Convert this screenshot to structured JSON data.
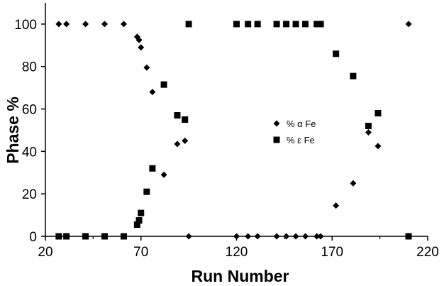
{
  "chart_data": {
    "type": "scatter",
    "title": "",
    "xlabel": "Run Number",
    "ylabel": "Phase %",
    "xlim": [
      20,
      220
    ],
    "ylim": [
      0,
      110
    ],
    "xticks": [
      20,
      70,
      120,
      170,
      220
    ],
    "yticks": [
      0,
      20,
      40,
      60,
      80,
      100
    ],
    "x_tick_labels": [
      "20",
      "70",
      "120",
      "170",
      "220"
    ],
    "y_tick_labels": [
      "0",
      "20",
      "40",
      "60",
      "80",
      "100"
    ],
    "grid": false,
    "legend_position": "center-right",
    "series": [
      {
        "name": "% α Fe",
        "legend_label": "% α Fe",
        "marker": "diamond",
        "color": "#000000",
        "points": [
          [
            27,
            100
          ],
          [
            31,
            100
          ],
          [
            41,
            100
          ],
          [
            51,
            100
          ],
          [
            61,
            100
          ],
          [
            68,
            94
          ],
          [
            69,
            92.5
          ],
          [
            70,
            89
          ],
          [
            73,
            79.5
          ],
          [
            76,
            68
          ],
          [
            82,
            29
          ],
          [
            89,
            43.5
          ],
          [
            93,
            45
          ],
          [
            95,
            0
          ],
          [
            120,
            0
          ],
          [
            126,
            0
          ],
          [
            131,
            0
          ],
          [
            141,
            0
          ],
          [
            146,
            0
          ],
          [
            151,
            0
          ],
          [
            156,
            0
          ],
          [
            162,
            0
          ],
          [
            164,
            0
          ],
          [
            172,
            14.5
          ],
          [
            181,
            25
          ],
          [
            189,
            49
          ],
          [
            194,
            42.5
          ],
          [
            210,
            100
          ]
        ]
      },
      {
        "name": "% ε Fe",
        "legend_label": "% ε Fe",
        "marker": "square",
        "color": "#000000",
        "points": [
          [
            27,
            0
          ],
          [
            31,
            0
          ],
          [
            41,
            0
          ],
          [
            51,
            0
          ],
          [
            61,
            0
          ],
          [
            68,
            5.5
          ],
          [
            69,
            7.5
          ],
          [
            70,
            11
          ],
          [
            73,
            21
          ],
          [
            76,
            32
          ],
          [
            82,
            71.5
          ],
          [
            89,
            57
          ],
          [
            93,
            55
          ],
          [
            95,
            100
          ],
          [
            120,
            100
          ],
          [
            126,
            100
          ],
          [
            131,
            100
          ],
          [
            141,
            100
          ],
          [
            146,
            100
          ],
          [
            151,
            100
          ],
          [
            156,
            100
          ],
          [
            162,
            100
          ],
          [
            164,
            100
          ],
          [
            172,
            86
          ],
          [
            181,
            75.5
          ],
          [
            189,
            52
          ],
          [
            194,
            58
          ],
          [
            210,
            0
          ]
        ]
      }
    ]
  }
}
